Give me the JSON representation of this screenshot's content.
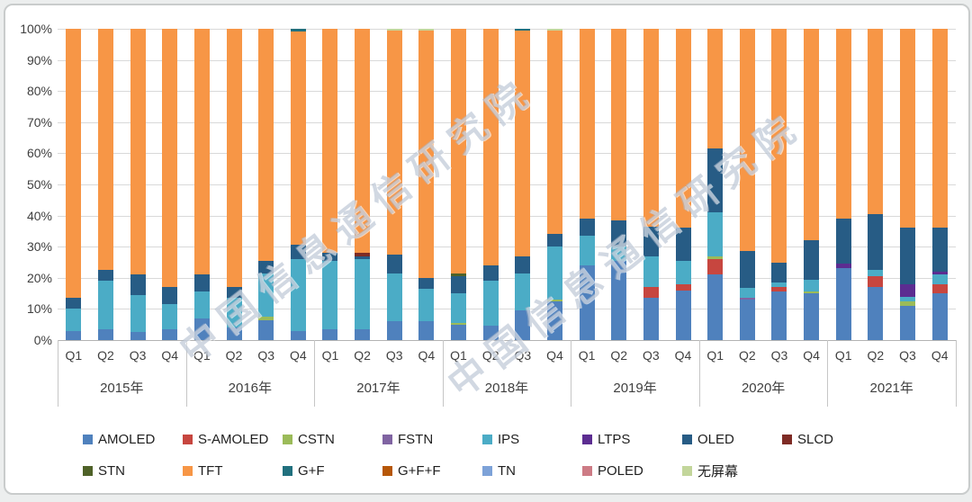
{
  "watermark": {
    "text": "中国信息通信研究院"
  },
  "y_axis": {
    "labels": [
      "100%",
      "90%",
      "80%",
      "70%",
      "60%",
      "50%",
      "40%",
      "30%",
      "20%",
      "10%",
      "0%"
    ]
  },
  "legend": {
    "rows": [
      [
        "AMOLED",
        "S-AMOLED",
        "CSTN",
        "FSTN",
        "IPS",
        "LTPS",
        "OLED",
        "SLCD"
      ],
      [
        "STN",
        "TFT",
        "G+F",
        "G+F+F",
        "TN",
        "POLED",
        "无屏幕"
      ]
    ]
  },
  "chart_data": {
    "type": "bar",
    "variant": "100%-stacked-column",
    "ylabel": "",
    "xlabel": "",
    "ylim": [
      0,
      100
    ],
    "grid": true,
    "legend_position": "bottom",
    "colors": {
      "AMOLED": "#4F81BD",
      "S-AMOLED": "#C7463F",
      "CSTN": "#9BBB59",
      "FSTN": "#8064A2",
      "IPS": "#4BACC6",
      "LTPS": "#5C2D91",
      "OLED": "#275C85",
      "SLCD": "#7E2B25",
      "STN": "#4F6228",
      "TFT": "#F79646",
      "G+F": "#21707E",
      "G+F+F": "#B65708",
      "TN": "#7DA2D8",
      "POLED": "#CD7B85",
      "无屏幕": "#C3D69B"
    },
    "categories": [
      {
        "year": "2015年",
        "quarters": [
          "Q1",
          "Q2",
          "Q3",
          "Q4"
        ]
      },
      {
        "year": "2016年",
        "quarters": [
          "Q1",
          "Q2",
          "Q3",
          "Q4"
        ]
      },
      {
        "year": "2017年",
        "quarters": [
          "Q1",
          "Q2",
          "Q3",
          "Q4"
        ]
      },
      {
        "year": "2018年",
        "quarters": [
          "Q1",
          "Q2",
          "Q3",
          "Q4"
        ]
      },
      {
        "year": "2019年",
        "quarters": [
          "Q1",
          "Q2",
          "Q3",
          "Q4"
        ]
      },
      {
        "year": "2020年",
        "quarters": [
          "Q1",
          "Q2",
          "Q3",
          "Q4"
        ]
      },
      {
        "year": "2021年",
        "quarters": [
          "Q1",
          "Q2",
          "Q3",
          "Q4"
        ]
      }
    ],
    "bars": [
      {
        "year": "2015年",
        "quarter": "Q1",
        "segments": [
          [
            "AMOLED",
            3
          ],
          [
            "IPS",
            7
          ],
          [
            "OLED",
            3.5
          ],
          [
            "TFT",
            86.5
          ]
        ]
      },
      {
        "year": "2015年",
        "quarter": "Q2",
        "segments": [
          [
            "AMOLED",
            3.5
          ],
          [
            "IPS",
            15.5
          ],
          [
            "OLED",
            3.5
          ],
          [
            "TFT",
            77.5
          ]
        ]
      },
      {
        "year": "2015年",
        "quarter": "Q3",
        "segments": [
          [
            "AMOLED",
            2.5
          ],
          [
            "IPS",
            12
          ],
          [
            "OLED",
            6.5
          ],
          [
            "TFT",
            79
          ]
        ]
      },
      {
        "year": "2015年",
        "quarter": "Q4",
        "segments": [
          [
            "AMOLED",
            3.5
          ],
          [
            "IPS",
            8
          ],
          [
            "OLED",
            5.5
          ],
          [
            "TFT",
            83
          ]
        ]
      },
      {
        "year": "2016年",
        "quarter": "Q1",
        "segments": [
          [
            "AMOLED",
            7
          ],
          [
            "IPS",
            8.5
          ],
          [
            "OLED",
            5.5
          ],
          [
            "TFT",
            79
          ]
        ]
      },
      {
        "year": "2016年",
        "quarter": "Q2",
        "segments": [
          [
            "AMOLED",
            4
          ],
          [
            "IPS",
            9.5
          ],
          [
            "OLED",
            3.5
          ],
          [
            "TFT",
            83
          ]
        ]
      },
      {
        "year": "2016年",
        "quarter": "Q3",
        "segments": [
          [
            "AMOLED",
            6.5
          ],
          [
            "CSTN",
            1
          ],
          [
            "IPS",
            14
          ],
          [
            "OLED",
            4
          ],
          [
            "TFT",
            74.5
          ]
        ]
      },
      {
        "year": "2016年",
        "quarter": "Q4",
        "segments": [
          [
            "AMOLED",
            3
          ],
          [
            "IPS",
            23
          ],
          [
            "OLED",
            4.5
          ],
          [
            "TFT",
            68.5
          ],
          [
            "G+F",
            1
          ]
        ]
      },
      {
        "year": "2017年",
        "quarter": "Q1",
        "segments": [
          [
            "AMOLED",
            3.5
          ],
          [
            "IPS",
            22
          ],
          [
            "OLED",
            2.5
          ],
          [
            "TFT",
            72
          ]
        ]
      },
      {
        "year": "2017年",
        "quarter": "Q2",
        "segments": [
          [
            "AMOLED",
            3.5
          ],
          [
            "IPS",
            22.5
          ],
          [
            "OLED",
            1
          ],
          [
            "SLCD",
            1
          ],
          [
            "TFT",
            72
          ]
        ]
      },
      {
        "year": "2017年",
        "quarter": "Q3",
        "segments": [
          [
            "AMOLED",
            6
          ],
          [
            "IPS",
            15.5
          ],
          [
            "OLED",
            6
          ],
          [
            "TFT",
            72
          ],
          [
            "无屏幕",
            0.5
          ]
        ]
      },
      {
        "year": "2017年",
        "quarter": "Q4",
        "segments": [
          [
            "AMOLED",
            6
          ],
          [
            "IPS",
            10.5
          ],
          [
            "OLED",
            3.5
          ],
          [
            "TFT",
            79.5
          ],
          [
            "无屏幕",
            0.5
          ]
        ]
      },
      {
        "year": "2018年",
        "quarter": "Q1",
        "segments": [
          [
            "AMOLED",
            5
          ],
          [
            "CSTN",
            0.5
          ],
          [
            "IPS",
            9.5
          ],
          [
            "OLED",
            5.5
          ],
          [
            "STN",
            0.8
          ],
          [
            "TFT",
            78.7
          ]
        ]
      },
      {
        "year": "2018年",
        "quarter": "Q2",
        "segments": [
          [
            "AMOLED",
            4.5
          ],
          [
            "IPS",
            14.5
          ],
          [
            "OLED",
            5
          ],
          [
            "TFT",
            76
          ]
        ]
      },
      {
        "year": "2018年",
        "quarter": "Q3",
        "segments": [
          [
            "AMOLED",
            9.5
          ],
          [
            "IPS",
            12
          ],
          [
            "OLED",
            5.5
          ],
          [
            "TFT",
            72.5
          ],
          [
            "G+F",
            0.5
          ]
        ]
      },
      {
        "year": "2018年",
        "quarter": "Q4",
        "segments": [
          [
            "AMOLED",
            12.5
          ],
          [
            "CSTN",
            0.5
          ],
          [
            "IPS",
            17
          ],
          [
            "OLED",
            4
          ],
          [
            "TFT",
            65.3
          ],
          [
            "无屏幕",
            0.7
          ]
        ]
      },
      {
        "year": "2019年",
        "quarter": "Q1",
        "segments": [
          [
            "AMOLED",
            24
          ],
          [
            "IPS",
            9.5
          ],
          [
            "OLED",
            5.5
          ],
          [
            "TFT",
            61
          ]
        ]
      },
      {
        "year": "2019年",
        "quarter": "Q2",
        "segments": [
          [
            "AMOLED",
            25.5
          ],
          [
            "IPS",
            4.5
          ],
          [
            "OLED",
            8.5
          ],
          [
            "TFT",
            61.5
          ]
        ]
      },
      {
        "year": "2019年",
        "quarter": "Q3",
        "segments": [
          [
            "AMOLED",
            13.5
          ],
          [
            "S-AMOLED",
            3.5
          ],
          [
            "IPS",
            10
          ],
          [
            "OLED",
            9.5
          ],
          [
            "TFT",
            63.5
          ]
        ]
      },
      {
        "year": "2019年",
        "quarter": "Q4",
        "segments": [
          [
            "AMOLED",
            16
          ],
          [
            "S-AMOLED",
            2
          ],
          [
            "IPS",
            7.5
          ],
          [
            "OLED",
            10.5
          ],
          [
            "TFT",
            64
          ]
        ]
      },
      {
        "year": "2020年",
        "quarter": "Q1",
        "segments": [
          [
            "AMOLED",
            21
          ],
          [
            "S-AMOLED",
            5
          ],
          [
            "CSTN",
            1
          ],
          [
            "IPS",
            14
          ],
          [
            "OLED",
            20.5
          ],
          [
            "TFT",
            38.5
          ]
        ]
      },
      {
        "year": "2020年",
        "quarter": "Q2",
        "segments": [
          [
            "AMOLED",
            13
          ],
          [
            "FSTN",
            0.7
          ],
          [
            "IPS",
            3
          ],
          [
            "OLED",
            12
          ],
          [
            "TFT",
            71.3
          ]
        ]
      },
      {
        "year": "2020年",
        "quarter": "Q3",
        "segments": [
          [
            "AMOLED",
            15.5
          ],
          [
            "S-AMOLED",
            1.5
          ],
          [
            "IPS",
            1.5
          ],
          [
            "OLED",
            6.5
          ],
          [
            "TFT",
            75
          ]
        ]
      },
      {
        "year": "2020年",
        "quarter": "Q4",
        "segments": [
          [
            "AMOLED",
            15
          ],
          [
            "CSTN",
            0.5
          ],
          [
            "IPS",
            4
          ],
          [
            "OLED",
            12.5
          ],
          [
            "TFT",
            68
          ]
        ]
      },
      {
        "year": "2021年",
        "quarter": "Q1",
        "segments": [
          [
            "AMOLED",
            23
          ],
          [
            "LTPS",
            1.5
          ],
          [
            "OLED",
            14.5
          ],
          [
            "TFT",
            61
          ]
        ]
      },
      {
        "year": "2021年",
        "quarter": "Q2",
        "segments": [
          [
            "AMOLED",
            17
          ],
          [
            "S-AMOLED",
            3.5
          ],
          [
            "IPS",
            2
          ],
          [
            "OLED",
            18
          ],
          [
            "TFT",
            59.5
          ]
        ]
      },
      {
        "year": "2021年",
        "quarter": "Q3",
        "segments": [
          [
            "AMOLED",
            11
          ],
          [
            "CSTN",
            1.5
          ],
          [
            "IPS",
            1.5
          ],
          [
            "LTPS",
            4
          ],
          [
            "OLED",
            18
          ],
          [
            "TFT",
            64
          ]
        ]
      },
      {
        "year": "2021年",
        "quarter": "Q4",
        "segments": [
          [
            "AMOLED",
            15
          ],
          [
            "S-AMOLED",
            3
          ],
          [
            "IPS",
            3
          ],
          [
            "LTPS",
            1
          ],
          [
            "OLED",
            14
          ],
          [
            "TFT",
            64
          ]
        ]
      }
    ]
  }
}
